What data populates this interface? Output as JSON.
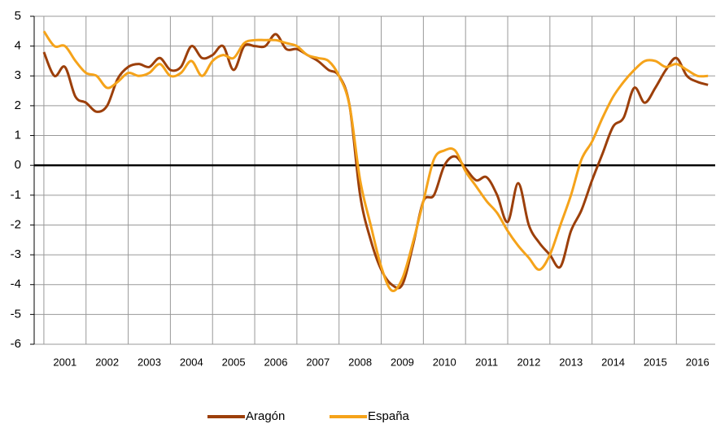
{
  "chart_data": {
    "type": "line",
    "x": [
      2001,
      2001.25,
      2001.5,
      2001.75,
      2002,
      2002.25,
      2002.5,
      2002.75,
      2003,
      2003.25,
      2003.5,
      2003.75,
      2004,
      2004.25,
      2004.5,
      2004.75,
      2005,
      2005.25,
      2005.5,
      2005.75,
      2006,
      2006.25,
      2006.5,
      2006.75,
      2007,
      2007.25,
      2007.5,
      2007.75,
      2008,
      2008.25,
      2008.5,
      2008.75,
      2009,
      2009.25,
      2009.5,
      2009.75,
      2010,
      2010.25,
      2010.5,
      2010.75,
      2011,
      2011.25,
      2011.5,
      2011.75,
      2012,
      2012.25,
      2012.5,
      2012.75,
      2013,
      2013.25,
      2013.5,
      2013.75,
      2014,
      2014.25,
      2014.5,
      2014.75,
      2015,
      2015.25,
      2015.5,
      2015.75,
      2016,
      2016.25,
      2016.5,
      2016.75
    ],
    "series": [
      {
        "name": "Aragón",
        "color": "#9c3f0a",
        "values": [
          3.8,
          3.0,
          3.3,
          2.3,
          2.1,
          1.8,
          2.0,
          2.9,
          3.3,
          3.4,
          3.3,
          3.6,
          3.2,
          3.3,
          4.0,
          3.6,
          3.7,
          4.0,
          3.2,
          4.0,
          4.0,
          4.0,
          4.4,
          3.9,
          3.9,
          3.7,
          3.5,
          3.2,
          3.0,
          2.0,
          -1.0,
          -2.5,
          -3.5,
          -4.0,
          -4.0,
          -2.7,
          -1.2,
          -1.0,
          0.0,
          0.3,
          -0.1,
          -0.5,
          -0.4,
          -1.0,
          -1.9,
          -0.6,
          -2.0,
          -2.6,
          -3.0,
          -3.4,
          -2.2,
          -1.5,
          -0.5,
          0.4,
          1.3,
          1.6,
          2.6,
          2.1,
          2.6,
          3.2,
          3.6,
          3.0,
          2.8,
          2.7
        ]
      },
      {
        "name": "España",
        "color": "#f5a31a",
        "values": [
          4.5,
          4.0,
          4.0,
          3.5,
          3.1,
          3.0,
          2.6,
          2.8,
          3.1,
          3.0,
          3.1,
          3.4,
          3.0,
          3.1,
          3.5,
          3.0,
          3.5,
          3.7,
          3.6,
          4.1,
          4.2,
          4.2,
          4.2,
          4.1,
          4.0,
          3.7,
          3.6,
          3.5,
          3.0,
          2.0,
          -0.5,
          -2.0,
          -3.4,
          -4.2,
          -3.8,
          -2.6,
          -1.2,
          0.2,
          0.5,
          0.5,
          -0.2,
          -0.7,
          -1.2,
          -1.6,
          -2.2,
          -2.7,
          -3.1,
          -3.5,
          -3.0,
          -2.0,
          -1.0,
          0.2,
          0.8,
          1.6,
          2.3,
          2.8,
          3.2,
          3.5,
          3.5,
          3.3,
          3.4,
          3.2,
          3.0,
          3.0
        ]
      }
    ],
    "xlim": [
      2000.77,
      2016.92
    ],
    "xticks": [
      2001,
      2002,
      2003,
      2004,
      2005,
      2006,
      2007,
      2008,
      2009,
      2010,
      2011,
      2012,
      2013,
      2014,
      2015,
      2016
    ],
    "ylim": [
      -6,
      5
    ],
    "yticks": [
      -6,
      -5,
      -4,
      -3,
      -2,
      -1,
      0,
      1,
      2,
      3,
      4,
      5
    ],
    "grid": true,
    "legend": "bottom"
  }
}
